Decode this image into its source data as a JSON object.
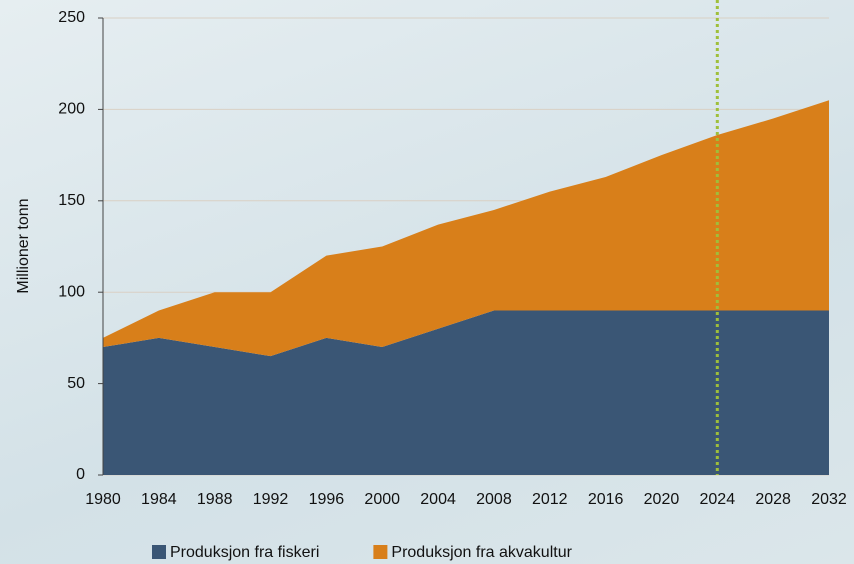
{
  "chart_data": {
    "type": "stacked_area",
    "ylabel": "Millioner tonn",
    "x": [
      1980,
      1984,
      1988,
      1992,
      1996,
      2000,
      2004,
      2008,
      2012,
      2016,
      2020,
      2024,
      2028,
      2032
    ],
    "series": [
      {
        "name": "Produksjon fra fiskeri",
        "color": "#3a5675",
        "values": [
          70,
          75,
          70,
          65,
          75,
          70,
          80,
          90,
          90,
          90,
          90,
          90,
          90,
          90
        ]
      },
      {
        "name": "Produksjon fra akvakultur",
        "color": "#d87f1a",
        "values": [
          5,
          15,
          30,
          35,
          45,
          55,
          57,
          55,
          65,
          73,
          85,
          96,
          105,
          115
        ]
      }
    ],
    "xlim": [
      1980,
      2032
    ],
    "xticks": [
      1980,
      1984,
      1988,
      1992,
      1996,
      2000,
      2004,
      2008,
      2012,
      2016,
      2020,
      2024,
      2028,
      2032
    ],
    "ylim": [
      0,
      250
    ],
    "yticks": [
      0,
      50,
      100,
      150,
      200,
      250
    ],
    "grid": true,
    "legend": "bottom",
    "vline": {
      "x": 2024,
      "color": "#9fbf3a"
    }
  }
}
